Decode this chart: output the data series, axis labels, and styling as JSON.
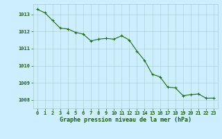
{
  "x": [
    0,
    1,
    2,
    3,
    4,
    5,
    6,
    7,
    8,
    9,
    10,
    11,
    12,
    13,
    14,
    15,
    16,
    17,
    18,
    19,
    20,
    21,
    22,
    23
  ],
  "y": [
    1013.3,
    1013.1,
    1012.65,
    1012.2,
    1012.15,
    1011.95,
    1011.85,
    1011.45,
    1011.55,
    1011.6,
    1011.55,
    1011.75,
    1011.5,
    1010.85,
    1010.3,
    1009.5,
    1009.35,
    1008.75,
    1008.7,
    1008.25,
    1008.3,
    1008.35,
    1008.1,
    1008.1
  ],
  "line_color": "#1a6b1a",
  "marker_color": "#1a6b1a",
  "bg_color": "#cceeff",
  "grid_color": "#aacccc",
  "text_color": "#1a5c1a",
  "xlabel": "Graphe pression niveau de la mer (hPa)",
  "ylim": [
    1007.5,
    1013.6
  ],
  "xlim": [
    -0.5,
    23.5
  ],
  "yticks": [
    1008,
    1009,
    1010,
    1011,
    1012,
    1013
  ],
  "xticks": [
    0,
    1,
    2,
    3,
    4,
    5,
    6,
    7,
    8,
    9,
    10,
    11,
    12,
    13,
    14,
    15,
    16,
    17,
    18,
    19,
    20,
    21,
    22,
    23
  ],
  "tick_fontsize": 5.0,
  "xlabel_fontsize": 6.0
}
